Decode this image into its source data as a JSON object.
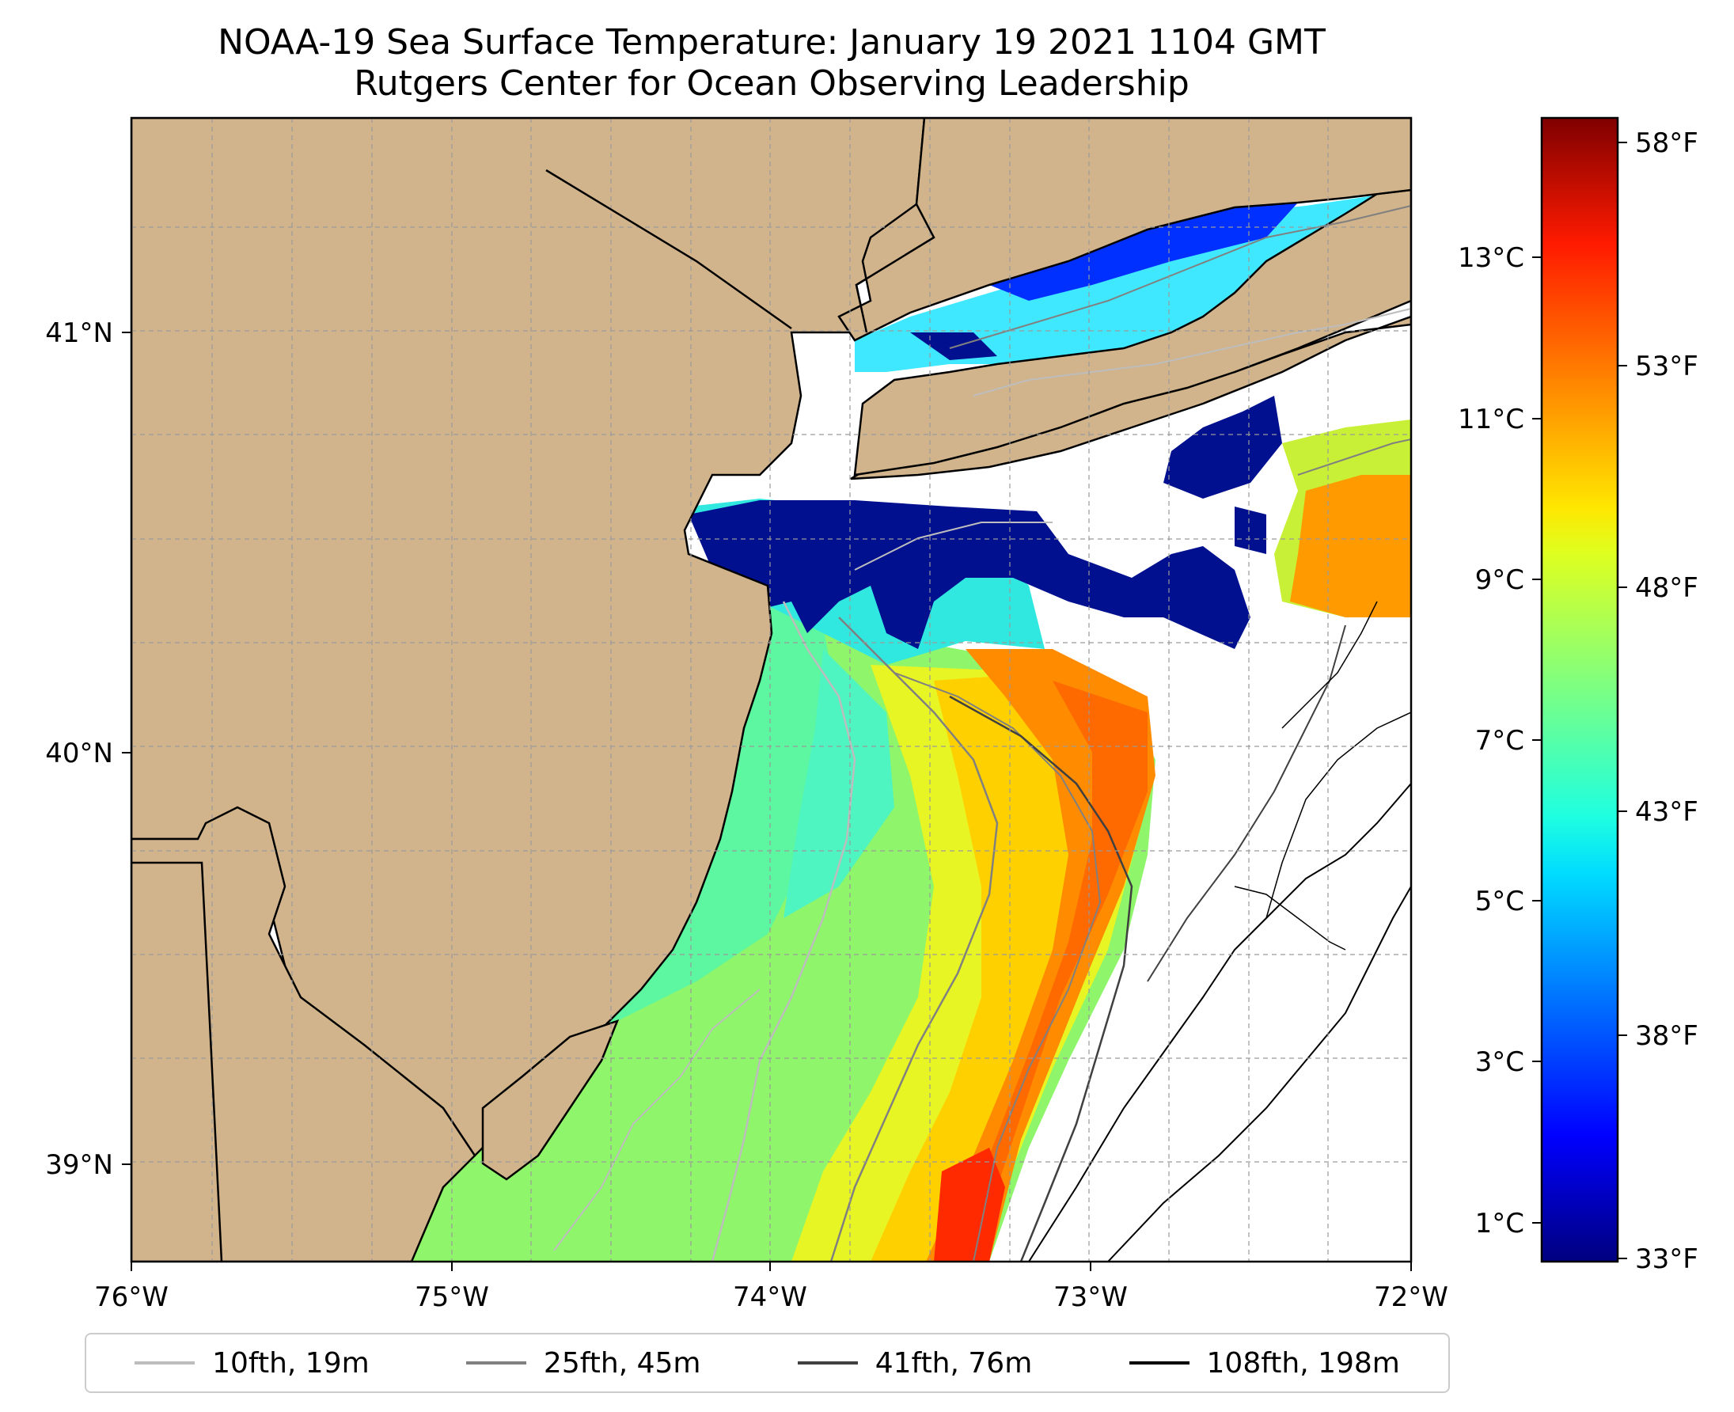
{
  "title": {
    "line1": "NOAA-19 Sea Surface Temperature: January 19 2021 1104 GMT",
    "line2": "Rutgers Center for Ocean Observing Leadership"
  },
  "map": {
    "lon_range": [
      -76,
      -72
    ],
    "lat_range": [
      38.73,
      41.52
    ],
    "land_color": "#d2b48c",
    "coast_color": "#000000",
    "gridlines": "dashed",
    "lon_ticks": [
      {
        "lon": -76,
        "label": "76°W"
      },
      {
        "lon": -75,
        "label": "75°W"
      },
      {
        "lon": -74,
        "label": "74°W"
      },
      {
        "lon": -73,
        "label": "73°W"
      },
      {
        "lon": -72,
        "label": "72°W"
      }
    ],
    "lat_ticks": [
      {
        "lat": 41,
        "label": "41°N"
      },
      {
        "lat": 40,
        "label": "40°N"
      },
      {
        "lat": 39,
        "label": "39°N"
      }
    ]
  },
  "colorbar": {
    "colormap": "jet",
    "range_f": [
      33,
      59
    ],
    "celsius_ticks": [
      {
        "value": 13,
        "label": "13°C"
      },
      {
        "value": 11,
        "label": "11°C"
      },
      {
        "value": 9,
        "label": "9°C"
      },
      {
        "value": 7,
        "label": "7°C"
      },
      {
        "value": 5,
        "label": "5°C"
      },
      {
        "value": 3,
        "label": "3°C"
      },
      {
        "value": 1,
        "label": "1°C"
      }
    ],
    "fahrenheit_ticks": [
      {
        "value": 58,
        "label": "58°F"
      },
      {
        "value": 53,
        "label": "53°F"
      },
      {
        "value": 48,
        "label": "48°F"
      },
      {
        "value": 43,
        "label": "43°F"
      },
      {
        "value": 38,
        "label": "38°F"
      },
      {
        "value": 33,
        "label": "33°F"
      }
    ]
  },
  "legend": {
    "items": [
      {
        "label": "10fth, 19m",
        "color": "#bdbdbd"
      },
      {
        "label": "25fth, 45m",
        "color": "#808080"
      },
      {
        "label": "41fth, 76m",
        "color": "#404040"
      },
      {
        "label": "108fth, 198m",
        "color": "#000000"
      }
    ]
  }
}
